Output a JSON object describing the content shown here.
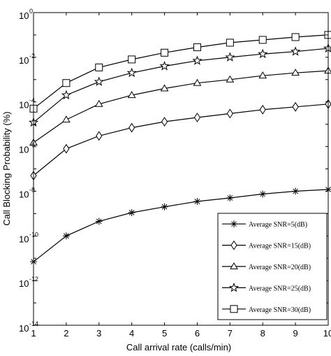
{
  "chart_data": {
    "type": "line",
    "xlabel": "Call arrival rate (calls/min)",
    "ylabel": "Call Blocking Probability (%)",
    "x": [
      1,
      2,
      3,
      4,
      5,
      6,
      7,
      8,
      9,
      10
    ],
    "xlim": [
      1,
      10
    ],
    "ylim": [
      1e-14,
      1
    ],
    "yscale": "log",
    "y_tick_base": "10",
    "y_tick_exponents": [
      "0",
      "-2",
      "-4",
      "-6",
      "-8",
      "-10",
      "-12",
      "-14"
    ],
    "legend_position": "bottom-right",
    "grid": false,
    "series": [
      {
        "name": "Average SNR=5(dB)",
        "marker": "asterisk",
        "values": [
          7e-12,
          1e-10,
          4.5e-10,
          1.1e-09,
          2e-09,
          3.5e-09,
          5e-09,
          7.5e-09,
          1e-08,
          1.2e-08
        ]
      },
      {
        "name": "Average SNR=15(dB)",
        "marker": "diamond",
        "values": [
          5e-08,
          8e-07,
          3e-06,
          7e-06,
          1.3e-05,
          2e-05,
          3e-05,
          4.5e-05,
          6e-05,
          8e-05
        ]
      },
      {
        "name": "Average SNR=20(dB)",
        "marker": "triangle",
        "values": [
          1.5e-06,
          1.6e-05,
          8e-05,
          0.0002,
          0.0004,
          0.0007,
          0.001,
          0.0015,
          0.002,
          0.0025
        ]
      },
      {
        "name": "Average SNR=25(dB)",
        "marker": "star",
        "values": [
          1.2e-05,
          0.0002,
          0.0008,
          0.002,
          0.004,
          0.007,
          0.01,
          0.014,
          0.018,
          0.025
        ]
      },
      {
        "name": "Average SNR=30(dB)",
        "marker": "square",
        "values": [
          5e-05,
          0.0007,
          0.0035,
          0.008,
          0.016,
          0.028,
          0.045,
          0.06,
          0.08,
          0.1
        ]
      }
    ]
  }
}
